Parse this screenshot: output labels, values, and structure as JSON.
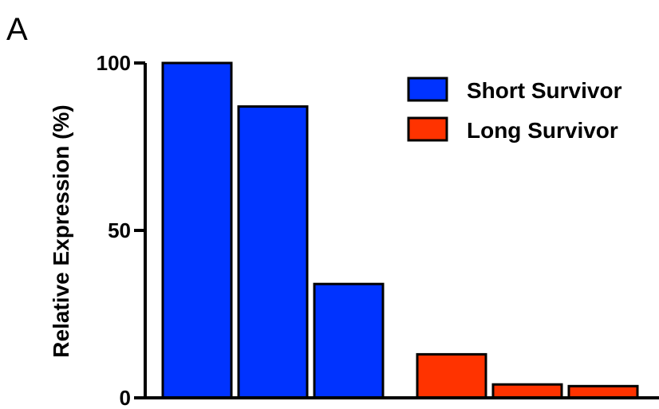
{
  "panel_label": "A",
  "chart_data": {
    "type": "bar",
    "ylabel": "Relative Expression (%)",
    "ylim": [
      0,
      100
    ],
    "yticks": [
      0,
      50,
      100
    ],
    "grid": false,
    "legend_position": "top-right",
    "series": [
      {
        "name": "Short Survivor",
        "color": "#0033ff",
        "values": [
          100,
          87,
          34
        ]
      },
      {
        "name": "Long Survivor",
        "color": "#ff3300",
        "values": [
          13,
          4,
          3.5
        ]
      }
    ]
  }
}
